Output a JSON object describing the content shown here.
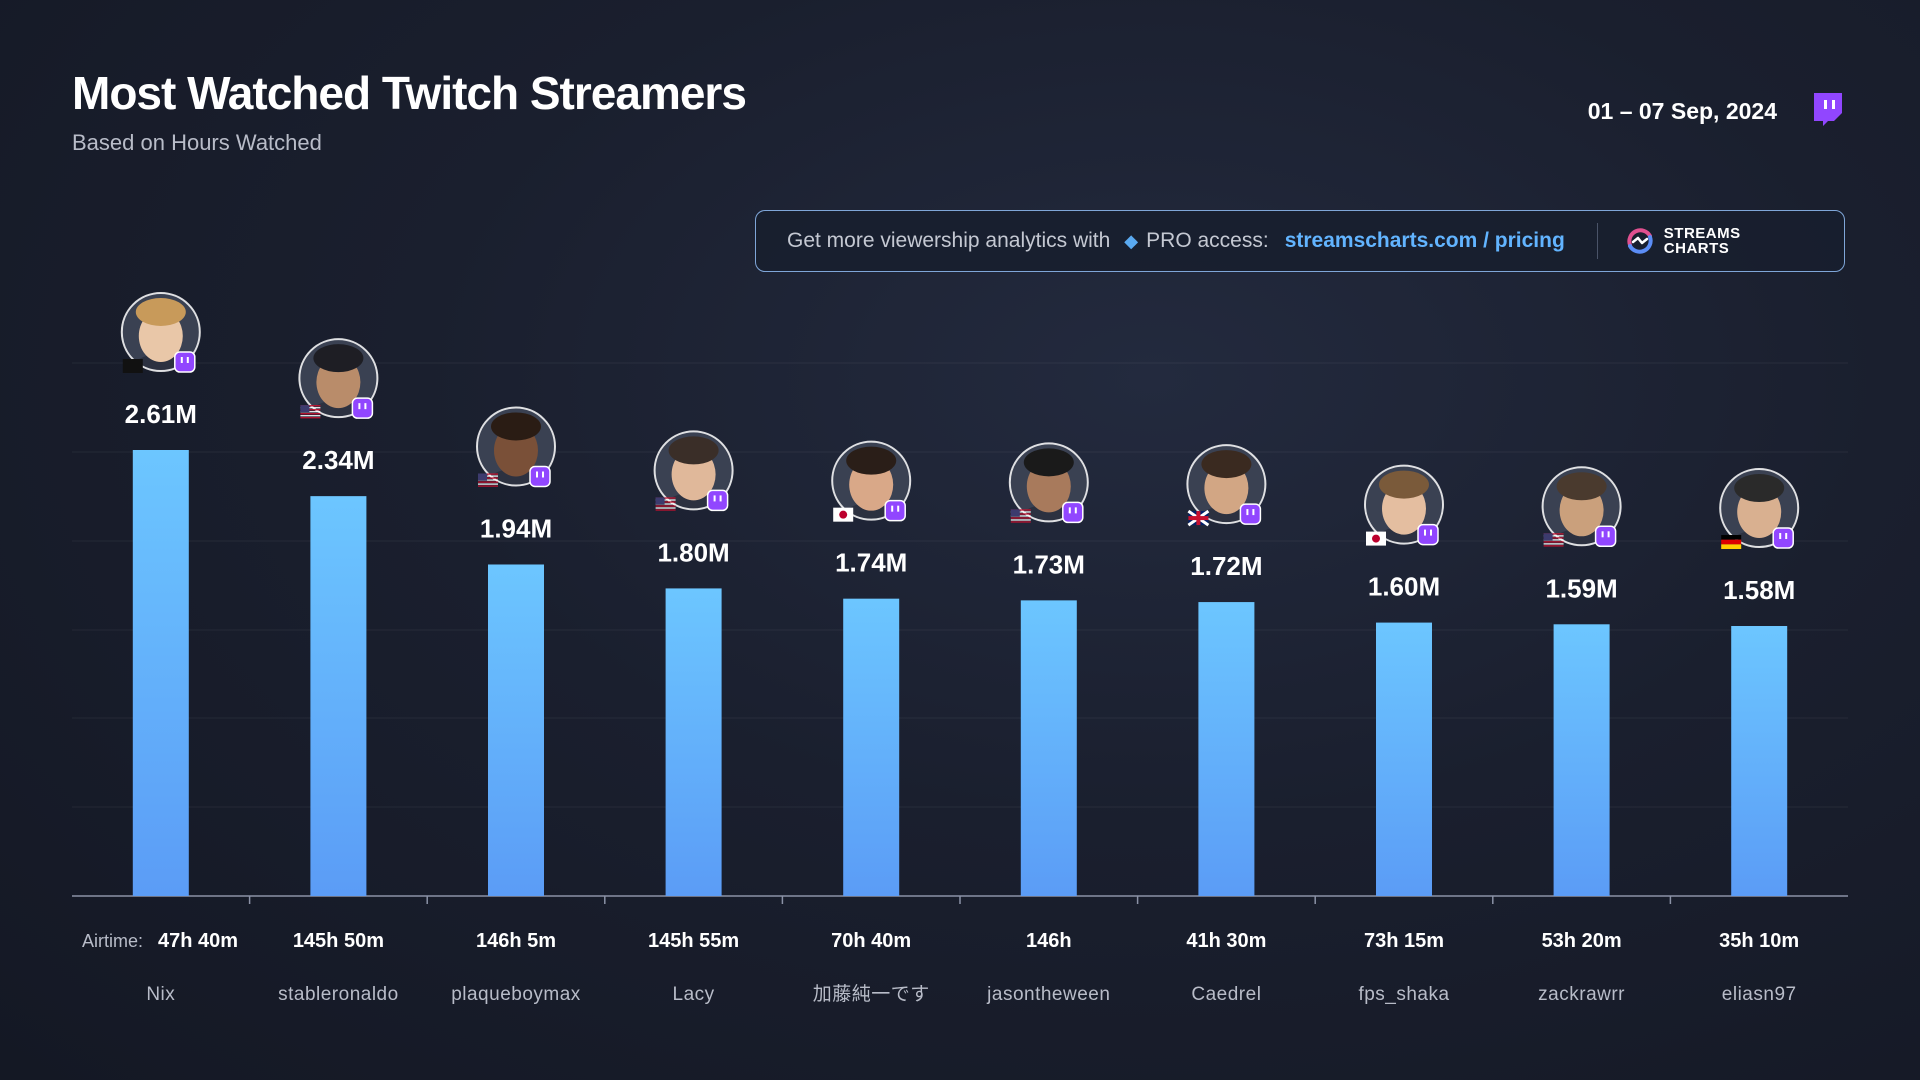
{
  "header": {
    "title": "Most Watched Twitch Streamers",
    "subtitle": "Based on Hours Watched",
    "date": "01 – 07 Sep, 2024"
  },
  "promo": {
    "text": "Get more viewership analytics with",
    "pro_label": "PRO access:",
    "link": "streamscharts.com / pricing",
    "brand_line1": "STREAMS",
    "brand_line2": "CHARTS"
  },
  "icons": {
    "platform": "twitch-icon",
    "gem": "diamond-icon",
    "brand": "streams-charts-logo-icon"
  },
  "colors": {
    "bar_top": "#6cc6ff",
    "bar_bottom": "#5b9cf6",
    "twitch": "#9146ff",
    "link": "#62b4ff",
    "background": "#1a1f2e"
  },
  "chart_data": {
    "type": "bar",
    "title": "Most Watched Twitch Streamers",
    "subtitle": "Based on Hours Watched",
    "unit": "M",
    "airtime_label": "Airtime:",
    "categories": [
      "Nix",
      "stableronaldo",
      "plaqueboymax",
      "Lacy",
      "加藤純一です",
      "jasontheween",
      "Caedrel",
      "fps_shaka",
      "zackrawrr",
      "eliasn97"
    ],
    "values": [
      2.61,
      2.34,
      1.94,
      1.8,
      1.74,
      1.73,
      1.72,
      1.6,
      1.59,
      1.58
    ],
    "value_labels": [
      "2.61M",
      "2.34M",
      "1.94M",
      "1.80M",
      "1.74M",
      "1.73M",
      "1.72M",
      "1.60M",
      "1.59M",
      "1.58M"
    ],
    "airtime": [
      "47h 40m",
      "145h 50m",
      "146h 5m",
      "145h 55m",
      "70h 40m",
      "146h",
      "41h 30m",
      "73h 15m",
      "53h 20m",
      "35h 10m"
    ],
    "countries": [
      "",
      "us-flag-icon",
      "us-flag-icon",
      "us-flag-icon",
      "jp-flag-icon",
      "us-flag-icon",
      "uk-flag-icon",
      "jp-flag-icon",
      "us-flag-icon",
      "de-flag-icon"
    ],
    "ylim": [
      0,
      2.61
    ],
    "grid": true,
    "legend": "none"
  }
}
